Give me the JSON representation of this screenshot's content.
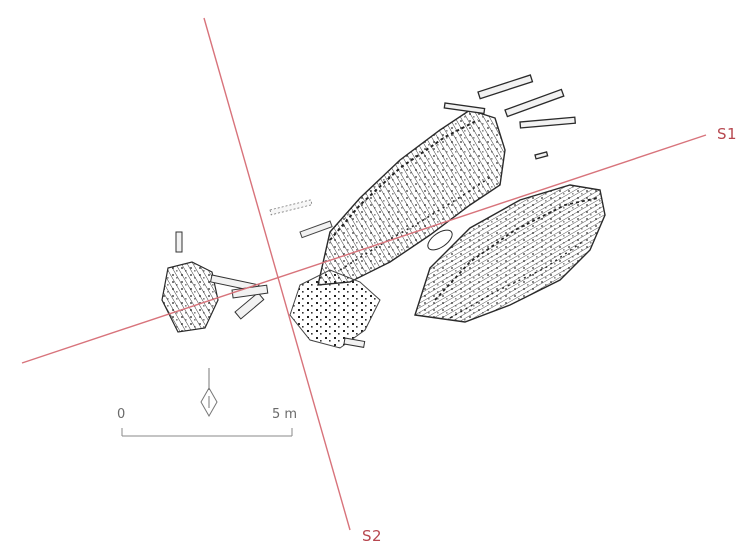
{
  "sections": {
    "s1_label": "S1",
    "s2_label": "S2",
    "line_color": "#d8737b"
  },
  "scale_bar": {
    "start_label": "0",
    "end_label": "5 m"
  },
  "north_arrow": {
    "icon": "north-arrow-icon"
  },
  "drawing": {
    "ink_color": "#2a2a2a"
  }
}
